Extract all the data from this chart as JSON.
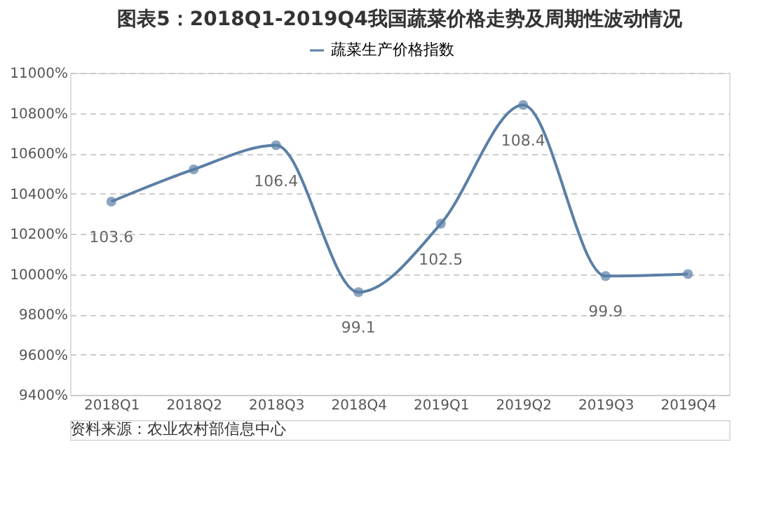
{
  "chart_data": {
    "type": "line",
    "title": "图表5：2018Q1-2019Q4我国蔬菜价格走势及周期性波动情况",
    "categories": [
      "2018Q1",
      "2018Q2",
      "2018Q3",
      "2018Q4",
      "2019Q1",
      "2019Q2",
      "2019Q3",
      "2019Q4"
    ],
    "series": [
      {
        "name": "蔬菜生产价格指数",
        "color": "#5b7fa6",
        "values": [
          103.6,
          105.2,
          106.4,
          99.1,
          102.5,
          108.4,
          99.9,
          100.0
        ],
        "value_labels": [
          "103.6",
          null,
          "106.4",
          "99.1",
          "102.5",
          "108.4",
          "99.9",
          null
        ]
      }
    ],
    "ylim": [
      94,
      110
    ],
    "yticks": [
      {
        "value": 94,
        "label": "9400%"
      },
      {
        "value": 96,
        "label": "9600%"
      },
      {
        "value": 98,
        "label": "9800%"
      },
      {
        "value": 100,
        "label": "10000%"
      },
      {
        "value": 102,
        "label": "10200%"
      },
      {
        "value": 104,
        "label": "10400%"
      },
      {
        "value": 106,
        "label": "10600%"
      },
      {
        "value": 108,
        "label": "10800%"
      },
      {
        "value": 110,
        "label": "11000%"
      }
    ],
    "grid": "y",
    "legend": "top",
    "marker": "circle",
    "line_style": "solid",
    "annotations": [
      "资料来源：农业农村部信息中心"
    ]
  }
}
